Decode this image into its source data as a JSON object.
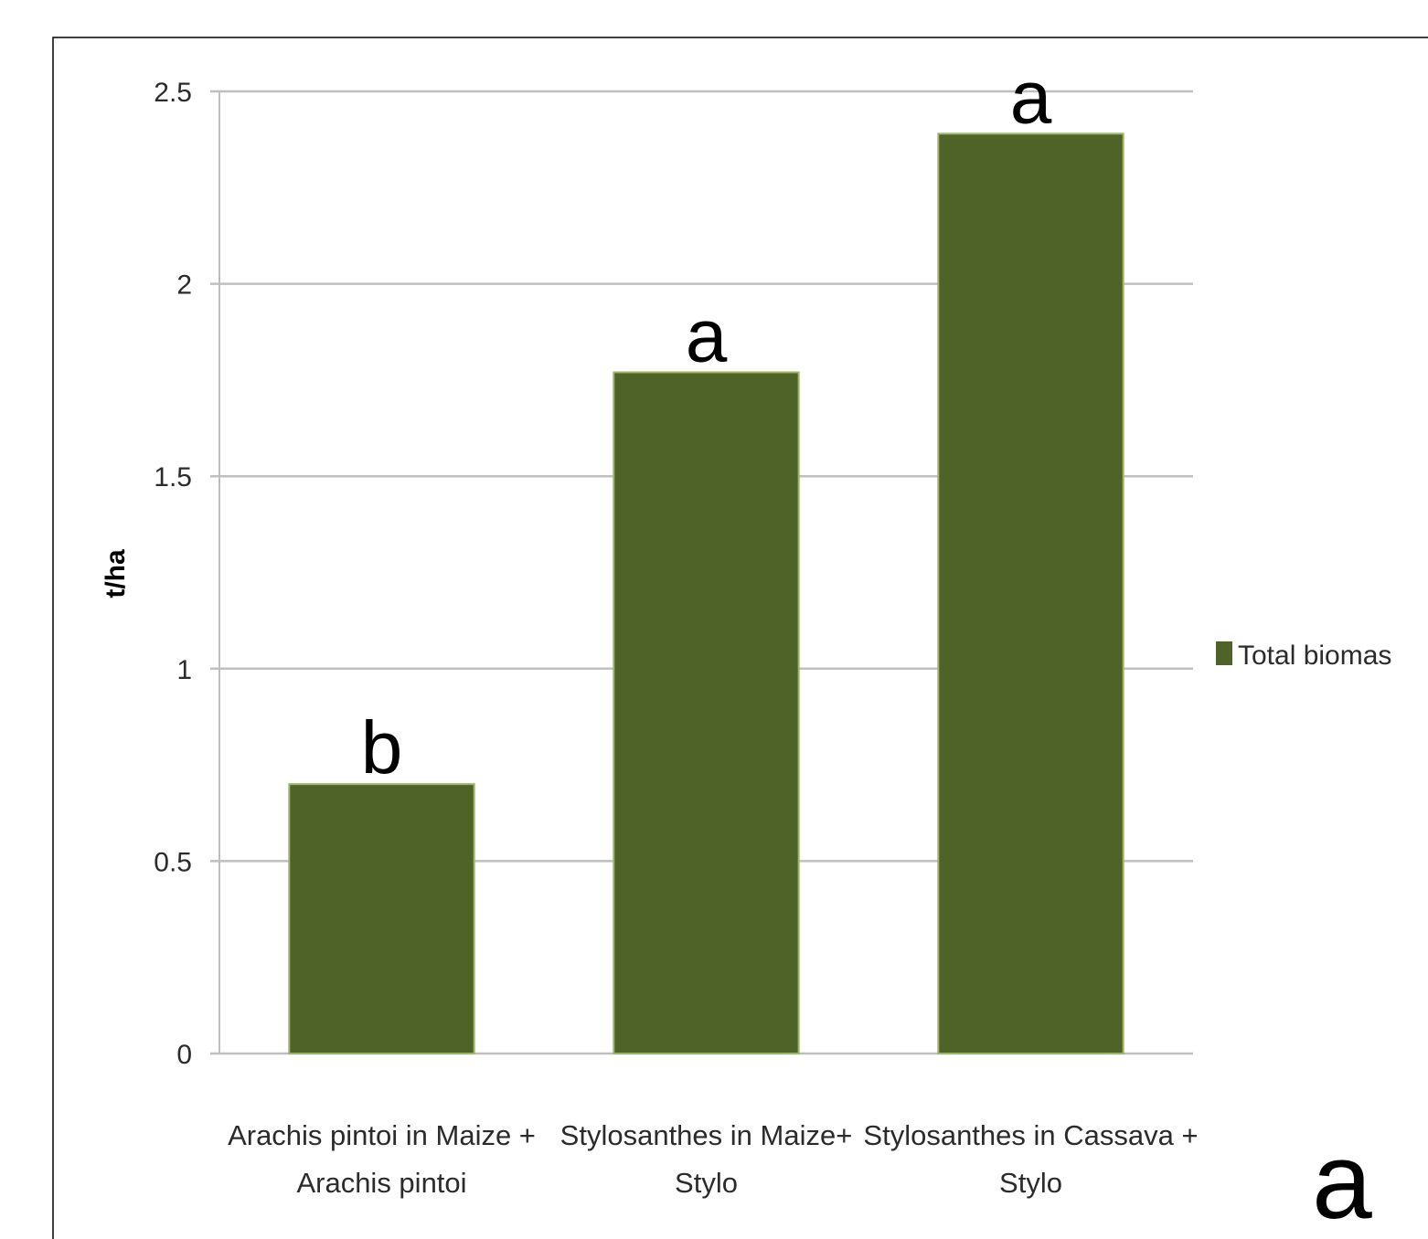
{
  "chart_data": {
    "type": "bar",
    "categories": [
      [
        "Arachis pintoi in Maize +",
        "Arachis pintoi"
      ],
      [
        "Stylosanthes in Maize+",
        "Stylo"
      ],
      [
        "Stylosanthes in Cassava +",
        "Stylo"
      ]
    ],
    "series": [
      {
        "name": "Total biomas",
        "values": [
          0.7,
          1.77,
          2.39
        ],
        "color": "#4f6228"
      }
    ],
    "significance_letters": [
      "b",
      "a",
      "a"
    ],
    "ylabel": "t/ha",
    "ylim": [
      0,
      2.5
    ],
    "yticks": [
      "0",
      "0.5",
      "1",
      "1.5",
      "2",
      "2.5"
    ],
    "grid": true,
    "legend_position": "right",
    "panel_label": "a",
    "colors": {
      "bar": "#4f6228",
      "bar_edge": "#9bb56a",
      "grid": "#bfbfbf",
      "frame": "#000000"
    }
  }
}
